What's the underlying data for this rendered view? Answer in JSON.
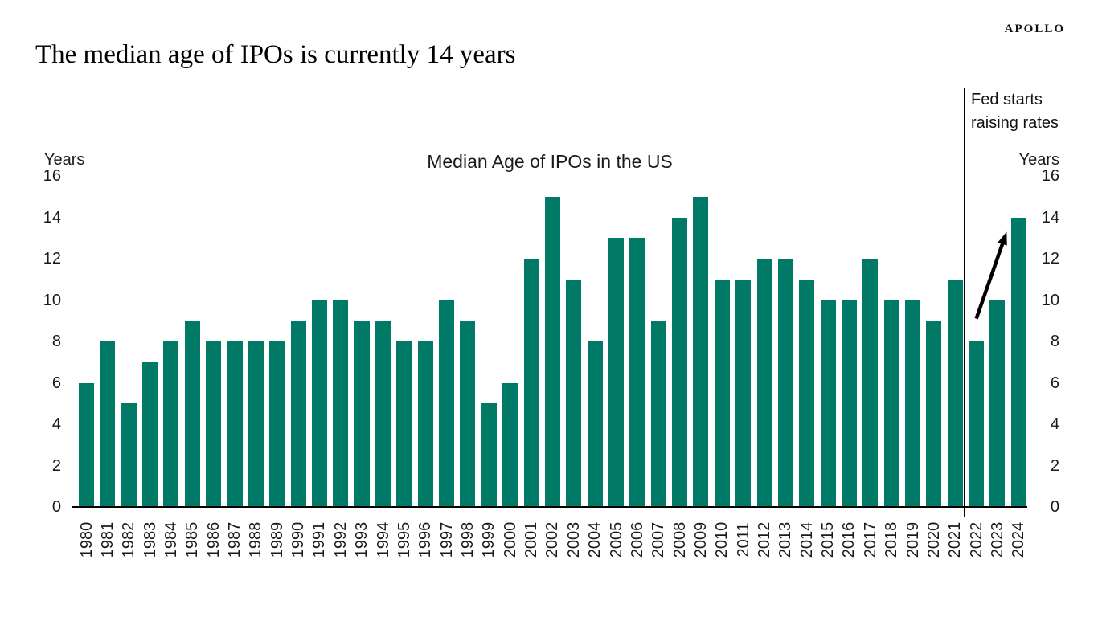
{
  "page": {
    "title": "The median age of IPOs is currently 14 years",
    "logo_text": "APOLLO"
  },
  "chart_data": {
    "type": "bar",
    "title": "Median Age of IPOs in the US",
    "ylabel_left": "Years",
    "ylabel_right": "Years",
    "ylim": [
      0,
      16
    ],
    "yticks": [
      16,
      14,
      12,
      10,
      8,
      6,
      4,
      2,
      0
    ],
    "grid": false,
    "legend": false,
    "bar_color": "#007a67",
    "categories": [
      "1980",
      "1981",
      "1982",
      "1983",
      "1984",
      "1985",
      "1986",
      "1987",
      "1988",
      "1989",
      "1990",
      "1991",
      "1992",
      "1993",
      "1994",
      "1995",
      "1996",
      "1997",
      "1998",
      "1999",
      "2000",
      "2001",
      "2002",
      "2003",
      "2004",
      "2005",
      "2006",
      "2007",
      "2008",
      "2009",
      "2010",
      "2011",
      "2012",
      "2013",
      "2014",
      "2015",
      "2016",
      "2017",
      "2018",
      "2019",
      "2020",
      "2021",
      "2022",
      "2023",
      "2024"
    ],
    "values": [
      6,
      8,
      5,
      7,
      8,
      9,
      8,
      8,
      8,
      8,
      9,
      10,
      10,
      9,
      9,
      8,
      8,
      10,
      9,
      5,
      6,
      12,
      15,
      11,
      8,
      13,
      13,
      9,
      14,
      15,
      11,
      11,
      12,
      12,
      11,
      10,
      10,
      12,
      10,
      10,
      9,
      11,
      8,
      10,
      14
    ],
    "annotations": {
      "vline_before_category": "2022",
      "vline_label_line1": "Fed starts",
      "vline_label_line2": "raising rates",
      "arrow": {
        "from_category": "2022",
        "from_value": 9.1,
        "to_category": "2024",
        "to_value": 13.3
      }
    }
  }
}
